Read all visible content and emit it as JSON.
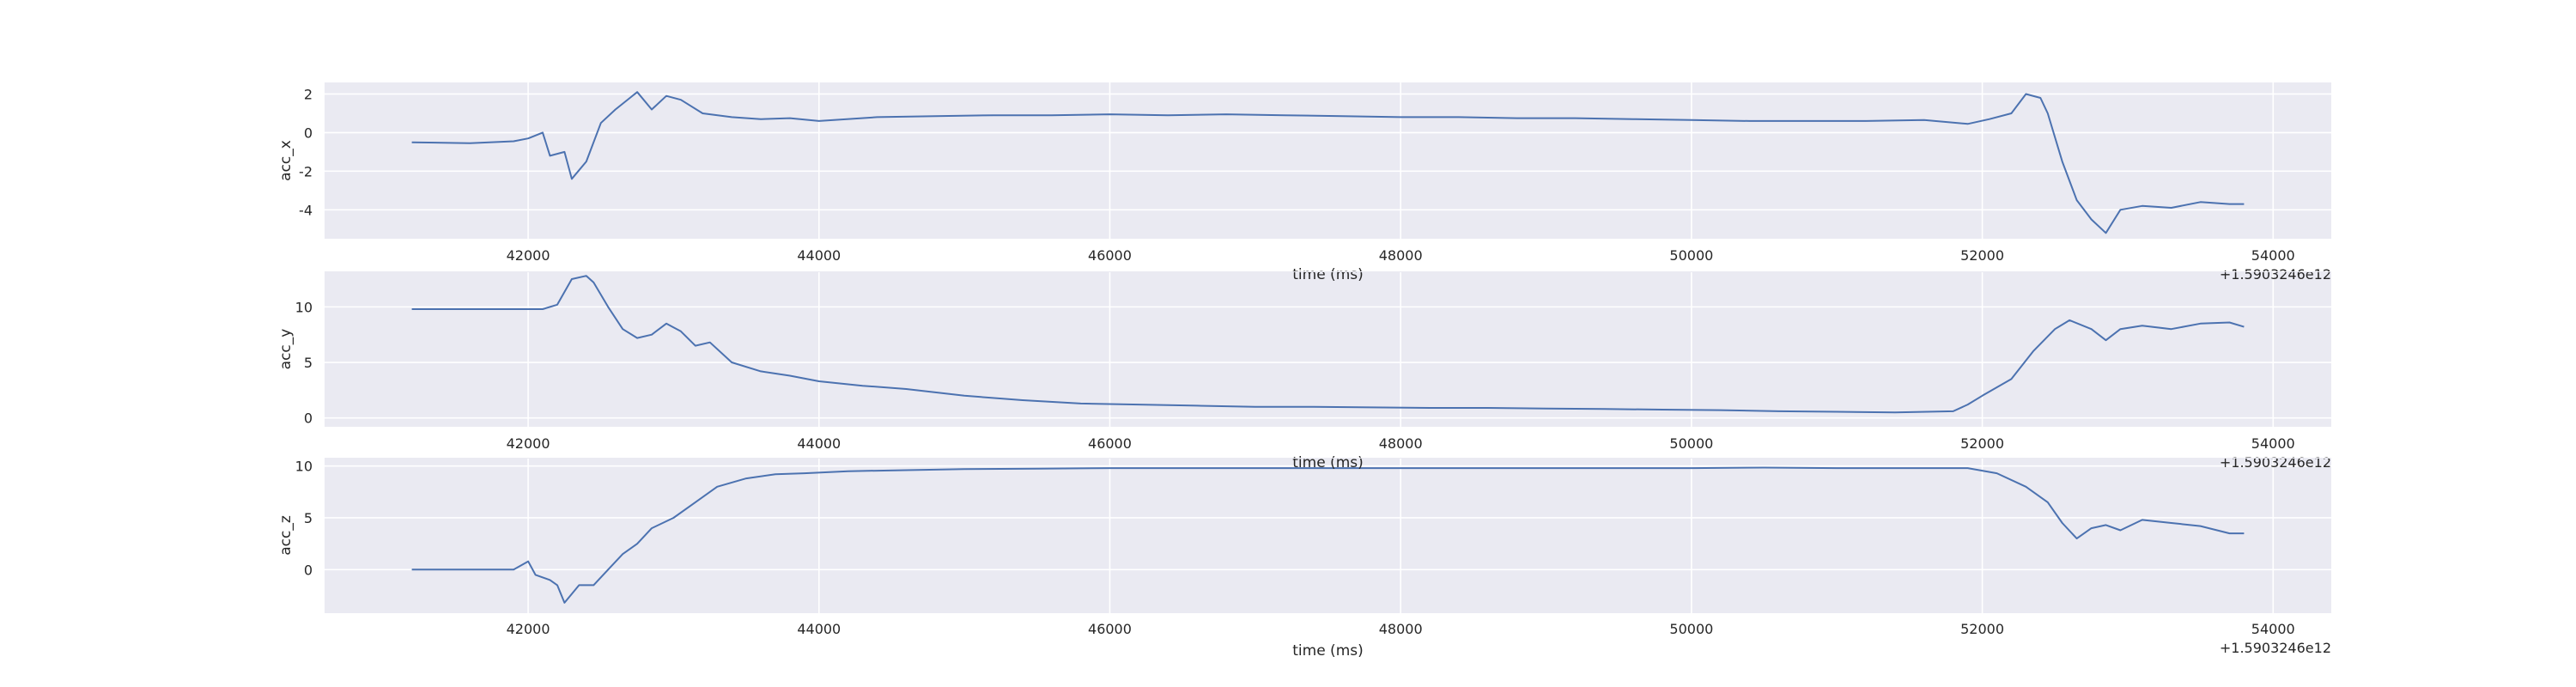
{
  "chart_data": [
    {
      "type": "line",
      "xlabel": "time (ms)",
      "ylabel": "acc_x",
      "x_offset_label": "+1.5903246e12",
      "xlim": [
        40600,
        54400
      ],
      "ylim": [
        -5.5,
        2.6
      ],
      "xticks": [
        42000,
        44000,
        46000,
        48000,
        50000,
        52000,
        54000
      ],
      "yticks": [
        -4,
        -2,
        0,
        2
      ],
      "grid": true,
      "line_color": "#4c72b0",
      "points": [
        [
          41200,
          -0.5
        ],
        [
          41600,
          -0.55
        ],
        [
          41900,
          -0.45
        ],
        [
          42000,
          -0.3
        ],
        [
          42100,
          0.0
        ],
        [
          42150,
          -1.2
        ],
        [
          42250,
          -1.0
        ],
        [
          42300,
          -2.4
        ],
        [
          42400,
          -1.5
        ],
        [
          42500,
          0.5
        ],
        [
          42600,
          1.2
        ],
        [
          42700,
          1.8
        ],
        [
          42750,
          2.1
        ],
        [
          42850,
          1.2
        ],
        [
          42950,
          1.9
        ],
        [
          43050,
          1.7
        ],
        [
          43200,
          1.0
        ],
        [
          43400,
          0.8
        ],
        [
          43600,
          0.7
        ],
        [
          43800,
          0.75
        ],
        [
          44000,
          0.6
        ],
        [
          44400,
          0.8
        ],
        [
          44800,
          0.85
        ],
        [
          45200,
          0.9
        ],
        [
          45600,
          0.9
        ],
        [
          46000,
          0.95
        ],
        [
          46400,
          0.9
        ],
        [
          46800,
          0.95
        ],
        [
          47200,
          0.9
        ],
        [
          47600,
          0.85
        ],
        [
          48000,
          0.8
        ],
        [
          48400,
          0.8
        ],
        [
          48800,
          0.75
        ],
        [
          49200,
          0.75
        ],
        [
          49600,
          0.7
        ],
        [
          50000,
          0.65
        ],
        [
          50400,
          0.6
        ],
        [
          50800,
          0.6
        ],
        [
          51200,
          0.6
        ],
        [
          51600,
          0.65
        ],
        [
          51900,
          0.45
        ],
        [
          52050,
          0.7
        ],
        [
          52200,
          1.0
        ],
        [
          52300,
          2.0
        ],
        [
          52400,
          1.8
        ],
        [
          52450,
          1.0
        ],
        [
          52550,
          -1.5
        ],
        [
          52650,
          -3.5
        ],
        [
          52750,
          -4.5
        ],
        [
          52850,
          -5.2
        ],
        [
          52950,
          -4.0
        ],
        [
          53100,
          -3.8
        ],
        [
          53300,
          -3.9
        ],
        [
          53500,
          -3.6
        ],
        [
          53700,
          -3.7
        ],
        [
          53800,
          -3.7
        ]
      ]
    },
    {
      "type": "line",
      "xlabel": "time (ms)",
      "ylabel": "acc_y",
      "x_offset_label": "+1.5903246e12",
      "xlim": [
        40600,
        54400
      ],
      "ylim": [
        -0.8,
        13.2
      ],
      "xticks": [
        42000,
        44000,
        46000,
        48000,
        50000,
        52000,
        54000
      ],
      "yticks": [
        0,
        5,
        10
      ],
      "grid": true,
      "line_color": "#4c72b0",
      "points": [
        [
          41200,
          9.8
        ],
        [
          41600,
          9.8
        ],
        [
          41900,
          9.8
        ],
        [
          42100,
          9.8
        ],
        [
          42200,
          10.2
        ],
        [
          42300,
          12.5
        ],
        [
          42400,
          12.8
        ],
        [
          42450,
          12.2
        ],
        [
          42550,
          10.0
        ],
        [
          42650,
          8.0
        ],
        [
          42750,
          7.2
        ],
        [
          42850,
          7.5
        ],
        [
          42950,
          8.5
        ],
        [
          43050,
          7.8
        ],
        [
          43150,
          6.5
        ],
        [
          43250,
          6.8
        ],
        [
          43400,
          5.0
        ],
        [
          43600,
          4.2
        ],
        [
          43800,
          3.8
        ],
        [
          44000,
          3.3
        ],
        [
          44300,
          2.9
        ],
        [
          44600,
          2.6
        ],
        [
          45000,
          2.0
        ],
        [
          45400,
          1.6
        ],
        [
          45800,
          1.3
        ],
        [
          46200,
          1.2
        ],
        [
          46600,
          1.1
        ],
        [
          47000,
          1.0
        ],
        [
          47400,
          1.0
        ],
        [
          47800,
          0.95
        ],
        [
          48200,
          0.9
        ],
        [
          48600,
          0.9
        ],
        [
          49000,
          0.85
        ],
        [
          49400,
          0.8
        ],
        [
          49800,
          0.75
        ],
        [
          50200,
          0.7
        ],
        [
          50600,
          0.6
        ],
        [
          51000,
          0.55
        ],
        [
          51400,
          0.5
        ],
        [
          51800,
          0.6
        ],
        [
          51900,
          1.2
        ],
        [
          52000,
          2.0
        ],
        [
          52200,
          3.5
        ],
        [
          52350,
          6.0
        ],
        [
          52500,
          8.0
        ],
        [
          52600,
          8.8
        ],
        [
          52750,
          8.0
        ],
        [
          52850,
          7.0
        ],
        [
          52950,
          8.0
        ],
        [
          53100,
          8.3
        ],
        [
          53300,
          8.0
        ],
        [
          53500,
          8.5
        ],
        [
          53700,
          8.6
        ],
        [
          53800,
          8.2
        ]
      ]
    },
    {
      "type": "line",
      "xlabel": "time (ms)",
      "ylabel": "acc_z",
      "x_offset_label": "+1.5903246e12",
      "xlim": [
        40600,
        54400
      ],
      "ylim": [
        -4.2,
        10.8
      ],
      "xticks": [
        42000,
        44000,
        46000,
        48000,
        50000,
        52000,
        54000
      ],
      "yticks": [
        0,
        5,
        10
      ],
      "grid": true,
      "line_color": "#4c72b0",
      "points": [
        [
          41200,
          0.0
        ],
        [
          41600,
          0.0
        ],
        [
          41900,
          0.0
        ],
        [
          42000,
          0.8
        ],
        [
          42050,
          -0.5
        ],
        [
          42150,
          -1.0
        ],
        [
          42200,
          -1.5
        ],
        [
          42250,
          -3.2
        ],
        [
          42350,
          -1.5
        ],
        [
          42450,
          -1.5
        ],
        [
          42550,
          0.0
        ],
        [
          42650,
          1.5
        ],
        [
          42750,
          2.5
        ],
        [
          42850,
          4.0
        ],
        [
          43000,
          5.0
        ],
        [
          43150,
          6.5
        ],
        [
          43300,
          8.0
        ],
        [
          43500,
          8.8
        ],
        [
          43700,
          9.2
        ],
        [
          43900,
          9.3
        ],
        [
          44200,
          9.5
        ],
        [
          44600,
          9.6
        ],
        [
          45000,
          9.7
        ],
        [
          45500,
          9.75
        ],
        [
          46000,
          9.8
        ],
        [
          46500,
          9.8
        ],
        [
          47000,
          9.8
        ],
        [
          47500,
          9.8
        ],
        [
          48000,
          9.8
        ],
        [
          48500,
          9.8
        ],
        [
          49000,
          9.8
        ],
        [
          49500,
          9.8
        ],
        [
          50000,
          9.8
        ],
        [
          50500,
          9.85
        ],
        [
          51000,
          9.8
        ],
        [
          51500,
          9.8
        ],
        [
          51900,
          9.8
        ],
        [
          52100,
          9.3
        ],
        [
          52300,
          8.0
        ],
        [
          52450,
          6.5
        ],
        [
          52550,
          4.5
        ],
        [
          52650,
          3.0
        ],
        [
          52750,
          4.0
        ],
        [
          52850,
          4.3
        ],
        [
          52950,
          3.8
        ],
        [
          53100,
          4.8
        ],
        [
          53300,
          4.5
        ],
        [
          53500,
          4.2
        ],
        [
          53700,
          3.5
        ],
        [
          53800,
          3.5
        ]
      ]
    }
  ]
}
